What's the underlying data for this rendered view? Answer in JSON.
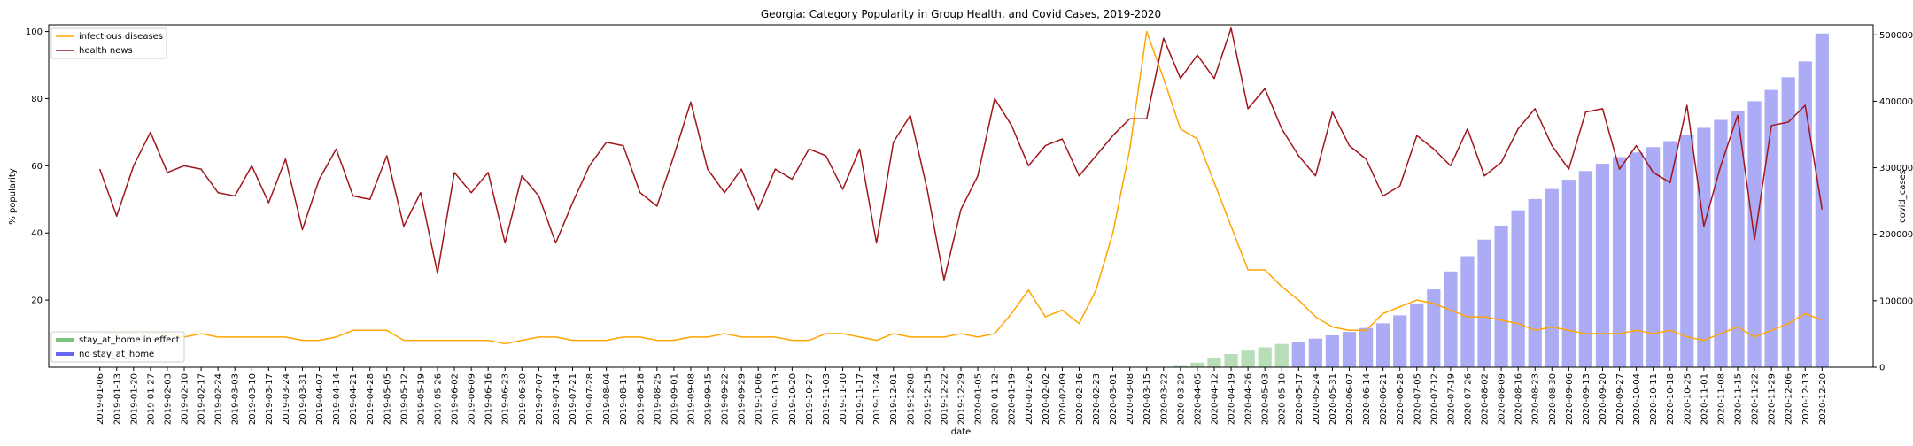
{
  "chart_data": {
    "type": "line",
    "title": "Georgia: Category Popularity in Group Health, and Covid Cases, 2019-2020",
    "xlabel": "date",
    "ylabel": "% popularity",
    "ylabel_right": "covid_cases",
    "ylim": [
      0,
      102
    ],
    "ylim_right": [
      0,
      515000
    ],
    "yticks": [
      20,
      40,
      60,
      80,
      100
    ],
    "yticks_right": [
      0,
      100000,
      200000,
      300000,
      400000,
      500000
    ],
    "grid": false,
    "legend_lines_position": "upper-left",
    "legend_bars_position": "lower-left",
    "categories": [
      "2019-01-06",
      "2019-01-13",
      "2019-01-20",
      "2019-01-27",
      "2019-02-03",
      "2019-02-10",
      "2019-02-17",
      "2019-02-24",
      "2019-03-03",
      "2019-03-10",
      "2019-03-17",
      "2019-03-24",
      "2019-03-31",
      "2019-04-07",
      "2019-04-14",
      "2019-04-21",
      "2019-04-28",
      "2019-05-05",
      "2019-05-12",
      "2019-05-19",
      "2019-05-26",
      "2019-06-02",
      "2019-06-09",
      "2019-06-16",
      "2019-06-23",
      "2019-06-30",
      "2019-07-07",
      "2019-07-14",
      "2019-07-21",
      "2019-07-28",
      "2019-08-04",
      "2019-08-11",
      "2019-08-18",
      "2019-08-25",
      "2019-09-01",
      "2019-09-08",
      "2019-09-15",
      "2019-09-22",
      "2019-09-29",
      "2019-10-06",
      "2019-10-13",
      "2019-10-20",
      "2019-10-27",
      "2019-11-03",
      "2019-11-10",
      "2019-11-17",
      "2019-11-24",
      "2019-12-01",
      "2019-12-08",
      "2019-12-15",
      "2019-12-22",
      "2019-12-29",
      "2020-01-05",
      "2020-01-12",
      "2020-01-19",
      "2020-01-26",
      "2020-02-02",
      "2020-02-09",
      "2020-02-16",
      "2020-02-23",
      "2020-03-01",
      "2020-03-08",
      "2020-03-15",
      "2020-03-22",
      "2020-03-29",
      "2020-04-05",
      "2020-04-12",
      "2020-04-19",
      "2020-04-26",
      "2020-05-03",
      "2020-05-10",
      "2020-05-17",
      "2020-05-24",
      "2020-05-31",
      "2020-06-07",
      "2020-06-14",
      "2020-06-21",
      "2020-06-28",
      "2020-07-05",
      "2020-07-12",
      "2020-07-19",
      "2020-07-26",
      "2020-08-02",
      "2020-08-09",
      "2020-08-16",
      "2020-08-23",
      "2020-08-30",
      "2020-09-06",
      "2020-09-13",
      "2020-09-20",
      "2020-09-27",
      "2020-10-04",
      "2020-10-11",
      "2020-10-18",
      "2020-10-25",
      "2020-11-01",
      "2020-11-08",
      "2020-11-15",
      "2020-11-22",
      "2020-11-29",
      "2020-12-06",
      "2020-12-13",
      "2020-12-20"
    ],
    "series": [
      {
        "name": "infectious diseases",
        "axis": "left",
        "color": "#ffa500",
        "values": [
          10,
          10,
          10,
          10,
          10,
          9,
          10,
          9,
          9,
          9,
          9,
          9,
          8,
          8,
          9,
          11,
          11,
          11,
          8,
          8,
          8,
          8,
          8,
          8,
          7,
          8,
          9,
          9,
          8,
          8,
          8,
          9,
          9,
          8,
          8,
          9,
          9,
          10,
          9,
          9,
          9,
          8,
          8,
          10,
          10,
          9,
          8,
          10,
          9,
          9,
          9,
          10,
          9,
          10,
          16,
          23,
          15,
          17,
          13,
          23,
          40,
          65,
          100,
          86,
          71,
          68,
          55,
          42,
          29,
          29,
          24,
          20,
          15,
          12,
          11,
          11,
          16,
          18,
          20,
          19,
          17,
          15,
          15,
          14,
          13,
          11,
          12,
          11,
          10,
          10,
          10,
          11,
          10,
          11,
          9,
          8,
          10,
          12,
          9,
          11,
          13,
          16,
          14
        ]
      },
      {
        "name": "health news",
        "axis": "left",
        "color": "#a0161c",
        "values": [
          59,
          45,
          60,
          70,
          58,
          60,
          59,
          52,
          51,
          60,
          49,
          62,
          41,
          56,
          65,
          51,
          50,
          63,
          42,
          52,
          28,
          58,
          52,
          58,
          37,
          57,
          51,
          37,
          49,
          60,
          67,
          66,
          52,
          48,
          63,
          79,
          59,
          52,
          59,
          47,
          59,
          56,
          65,
          63,
          53,
          65,
          37,
          67,
          75,
          53,
          26,
          47,
          57,
          80,
          72,
          60,
          66,
          68,
          57,
          63,
          69,
          74,
          74,
          98,
          86,
          93,
          86,
          101,
          77,
          83,
          71,
          63,
          57,
          76,
          66,
          62,
          51,
          54,
          69,
          65,
          60,
          71,
          57,
          61,
          71,
          77,
          66,
          59,
          76,
          77,
          59,
          66,
          58,
          55,
          78,
          42,
          60,
          75,
          38,
          72,
          73,
          78,
          47
        ]
      }
    ],
    "bar_series": [
      {
        "name": "stay_at_home in effect",
        "axis": "right",
        "color": "#7bc27b",
        "values": [
          0,
          0,
          0,
          0,
          0,
          0,
          0,
          0,
          0,
          0,
          0,
          0,
          0,
          0,
          0,
          0,
          0,
          0,
          0,
          0,
          0,
          0,
          0,
          0,
          0,
          0,
          0,
          0,
          0,
          0,
          0,
          0,
          0,
          0,
          0,
          0,
          0,
          0,
          0,
          0,
          0,
          0,
          0,
          0,
          0,
          0,
          0,
          0,
          0,
          0,
          0,
          0,
          0,
          0,
          0,
          0,
          0,
          0,
          0,
          0,
          0,
          0,
          0,
          0,
          2000,
          7000,
          14000,
          20000,
          25000,
          30000,
          35000,
          0,
          0,
          0,
          0,
          0,
          0,
          0,
          0,
          0,
          0,
          0,
          0,
          0,
          0,
          0,
          0,
          0,
          0,
          0,
          0,
          0,
          0,
          0,
          0,
          0,
          0,
          0,
          0,
          0,
          0,
          0,
          0
        ]
      },
      {
        "name": "no stay_at_home",
        "axis": "right",
        "color": "#6666ee",
        "values": [
          0,
          0,
          0,
          0,
          0,
          0,
          0,
          0,
          0,
          0,
          0,
          0,
          0,
          0,
          0,
          0,
          0,
          0,
          0,
          0,
          0,
          0,
          0,
          0,
          0,
          0,
          0,
          0,
          0,
          0,
          0,
          0,
          0,
          0,
          0,
          0,
          0,
          0,
          0,
          0,
          0,
          0,
          0,
          0,
          0,
          0,
          0,
          0,
          0,
          0,
          0,
          0,
          0,
          0,
          0,
          0,
          0,
          0,
          0,
          0,
          0,
          0,
          0,
          0,
          0,
          0,
          0,
          0,
          0,
          0,
          0,
          38000,
          43000,
          48000,
          53000,
          59000,
          66000,
          78000,
          96000,
          117000,
          144000,
          167000,
          192000,
          213000,
          236000,
          253000,
          268000,
          282000,
          295000,
          306000,
          316000,
          323000,
          331000,
          340000,
          349000,
          360000,
          372000,
          385000,
          400000,
          417000,
          436000,
          460000,
          502000
        ]
      }
    ]
  }
}
